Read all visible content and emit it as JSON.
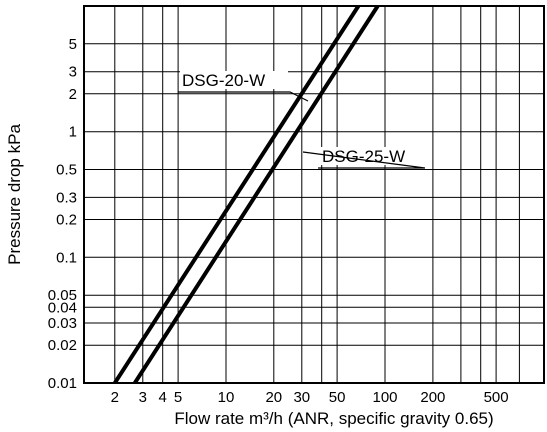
{
  "chart_data": {
    "type": "line",
    "title": "",
    "xlabel": "Flow rate m³/h (ANR, specific gravity 0.65)",
    "ylabel": "Pressure drop kPa",
    "x_scale": "log",
    "y_scale": "log",
    "xlim": [
      1.28,
      1000
    ],
    "ylim": [
      0.01,
      10
    ],
    "grid": true,
    "x_ticks": [
      {
        "value": 2,
        "label": "2"
      },
      {
        "value": 3,
        "label": "3"
      },
      {
        "value": 4,
        "label": "4"
      },
      {
        "value": 5,
        "label": "5"
      },
      {
        "value": 10,
        "label": "10"
      },
      {
        "value": 20,
        "label": "20"
      },
      {
        "value": 30,
        "label": "30"
      },
      {
        "value": 50,
        "label": "50"
      },
      {
        "value": 100,
        "label": "100"
      },
      {
        "value": 200,
        "label": "200"
      },
      {
        "value": 500,
        "label": "500"
      }
    ],
    "x_minor_grid": [
      40,
      300,
      400,
      700,
      1000
    ],
    "y_ticks": [
      {
        "value": 0.01,
        "label": "0.01"
      },
      {
        "value": 0.02,
        "label": "0.02"
      },
      {
        "value": 0.03,
        "label": "0.03"
      },
      {
        "value": 0.04,
        "label": "0.04"
      },
      {
        "value": 0.05,
        "label": "0.05"
      },
      {
        "value": 0.1,
        "label": "0.1"
      },
      {
        "value": 0.2,
        "label": "0.2"
      },
      {
        "value": 0.3,
        "label": "0.3"
      },
      {
        "value": 0.5,
        "label": "0.5"
      },
      {
        "value": 1,
        "label": "1"
      },
      {
        "value": 2,
        "label": "2"
      },
      {
        "value": 3,
        "label": "3"
      },
      {
        "value": 5,
        "label": "5"
      }
    ],
    "series": [
      {
        "name": "DSG-20-W",
        "x": [
          2,
          68
        ],
        "y": [
          0.01,
          10
        ],
        "color": "#000000"
      },
      {
        "name": "DSG-25-W",
        "x": [
          2.67,
          90
        ],
        "y": [
          0.01,
          10
        ],
        "color": "#000000"
      }
    ],
    "annotations": [
      {
        "text": "DSG-20-W",
        "series": 0
      },
      {
        "text": "DSG-25-W",
        "series": 1
      }
    ]
  }
}
